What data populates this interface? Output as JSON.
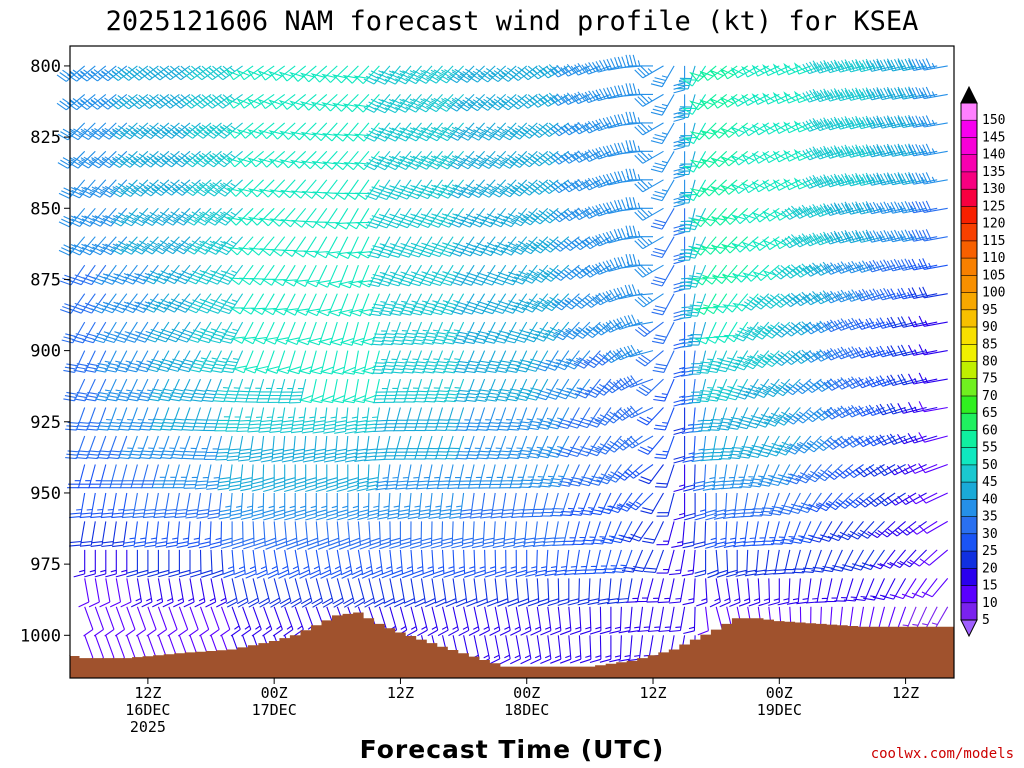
{
  "chart_data": {
    "type": "wind_barb_profile",
    "title": "2025121606 NAM forecast wind profile (kt) for KSEA",
    "xlabel": "Forecast Time (UTC)",
    "credit": "coolwx.com/models",
    "credit_color": "#cc0000",
    "y_axis": {
      "ticks": [
        800,
        825,
        850,
        875,
        900,
        925,
        950,
        975,
        1000
      ],
      "range": [
        793,
        1015
      ]
    },
    "x_axis": {
      "range_hours": [
        -1.4,
        82.6
      ],
      "ticks": [
        {
          "hour": 6,
          "label": "12Z",
          "date": "16DEC",
          "year": "2025"
        },
        {
          "hour": 18,
          "label": "00Z",
          "date": "17DEC",
          "year": ""
        },
        {
          "hour": 30,
          "label": "12Z",
          "date": "",
          "year": ""
        },
        {
          "hour": 42,
          "label": "00Z",
          "date": "18DEC",
          "year": ""
        },
        {
          "hour": 54,
          "label": "12Z",
          "date": "",
          "year": ""
        },
        {
          "hour": 66,
          "label": "00Z",
          "date": "19DEC",
          "year": ""
        },
        {
          "hour": 78,
          "label": "12Z",
          "date": "",
          "year": ""
        }
      ]
    },
    "levels_mb": [
      800,
      810,
      820,
      830,
      840,
      850,
      860,
      870,
      880,
      890,
      900,
      910,
      920,
      930,
      940,
      950,
      960,
      970,
      980,
      990,
      1000
    ],
    "time_step_hours": 1,
    "key_times": [
      0,
      10,
      18,
      26,
      30,
      42,
      50,
      54,
      57,
      60,
      66,
      74,
      82
    ],
    "wind_speed_kt": [
      [
        35,
        40,
        50,
        50,
        45,
        40,
        35,
        35,
        35,
        55,
        50,
        45,
        35
      ],
      [
        35,
        40,
        50,
        50,
        45,
        40,
        35,
        35,
        35,
        55,
        50,
        45,
        35
      ],
      [
        35,
        40,
        50,
        50,
        45,
        40,
        35,
        35,
        35,
        55,
        50,
        45,
        35
      ],
      [
        35,
        40,
        50,
        50,
        45,
        40,
        35,
        35,
        35,
        55,
        50,
        45,
        35
      ],
      [
        35,
        40,
        50,
        50,
        45,
        40,
        35,
        35,
        35,
        55,
        50,
        45,
        35
      ],
      [
        35,
        40,
        50,
        50,
        45,
        40,
        35,
        35,
        30,
        55,
        50,
        40,
        30
      ],
      [
        35,
        40,
        50,
        50,
        45,
        40,
        35,
        35,
        30,
        55,
        50,
        40,
        30
      ],
      [
        30,
        40,
        50,
        50,
        45,
        40,
        35,
        35,
        30,
        55,
        50,
        35,
        25
      ],
      [
        30,
        40,
        50,
        50,
        45,
        40,
        35,
        35,
        30,
        55,
        45,
        35,
        20
      ],
      [
        30,
        40,
        50,
        50,
        45,
        40,
        35,
        35,
        25,
        50,
        45,
        30,
        15
      ],
      [
        30,
        40,
        50,
        50,
        45,
        40,
        30,
        35,
        25,
        45,
        45,
        30,
        15
      ],
      [
        30,
        40,
        45,
        50,
        45,
        40,
        30,
        30,
        25,
        45,
        40,
        30,
        15
      ],
      [
        30,
        40,
        45,
        45,
        40,
        35,
        30,
        30,
        20,
        40,
        40,
        30,
        10
      ],
      [
        30,
        35,
        40,
        40,
        40,
        35,
        30,
        30,
        20,
        40,
        40,
        30,
        10
      ],
      [
        25,
        35,
        40,
        40,
        35,
        35,
        30,
        25,
        15,
        35,
        35,
        25,
        10
      ],
      [
        25,
        30,
        35,
        35,
        35,
        30,
        25,
        25,
        15,
        30,
        30,
        25,
        10
      ],
      [
        20,
        25,
        30,
        30,
        30,
        30,
        25,
        20,
        15,
        25,
        25,
        20,
        10
      ],
      [
        15,
        20,
        25,
        25,
        25,
        25,
        25,
        20,
        15,
        20,
        20,
        20,
        10
      ],
      [
        10,
        15,
        20,
        20,
        20,
        20,
        20,
        15,
        15,
        15,
        15,
        15,
        10
      ],
      [
        10,
        10,
        15,
        15,
        15,
        15,
        15,
        15,
        15,
        10,
        10,
        10,
        5
      ],
      [
        10,
        10,
        15,
        15,
        15,
        15,
        15,
        15,
        15,
        10,
        10,
        10,
        5
      ]
    ],
    "wind_dir_deg": [
      [
        230,
        235,
        235,
        225,
        220,
        230,
        250,
        270,
        180,
        230,
        245,
        255,
        260
      ],
      [
        230,
        235,
        235,
        225,
        220,
        230,
        250,
        270,
        180,
        230,
        245,
        255,
        260
      ],
      [
        225,
        230,
        230,
        220,
        220,
        225,
        245,
        270,
        180,
        225,
        240,
        255,
        260
      ],
      [
        225,
        230,
        230,
        220,
        220,
        225,
        245,
        270,
        180,
        225,
        240,
        255,
        260
      ],
      [
        220,
        230,
        225,
        215,
        215,
        225,
        245,
        270,
        180,
        225,
        240,
        255,
        260
      ],
      [
        220,
        225,
        225,
        210,
        215,
        220,
        245,
        270,
        180,
        220,
        235,
        255,
        260
      ],
      [
        220,
        225,
        220,
        205,
        210,
        220,
        240,
        270,
        180,
        220,
        235,
        255,
        260
      ],
      [
        215,
        220,
        215,
        200,
        210,
        215,
        240,
        270,
        180,
        215,
        230,
        250,
        260
      ],
      [
        215,
        220,
        210,
        200,
        205,
        215,
        235,
        265,
        180,
        210,
        230,
        250,
        260
      ],
      [
        210,
        215,
        205,
        195,
        200,
        210,
        230,
        260,
        180,
        205,
        225,
        250,
        260
      ],
      [
        205,
        210,
        200,
        190,
        200,
        205,
        225,
        255,
        180,
        200,
        225,
        250,
        260
      ],
      [
        205,
        205,
        195,
        190,
        195,
        205,
        220,
        250,
        180,
        200,
        220,
        245,
        260
      ],
      [
        200,
        200,
        190,
        185,
        195,
        200,
        215,
        245,
        180,
        195,
        215,
        245,
        260
      ],
      [
        200,
        200,
        185,
        185,
        195,
        200,
        215,
        240,
        180,
        190,
        210,
        240,
        255
      ],
      [
        195,
        195,
        180,
        180,
        190,
        195,
        210,
        235,
        180,
        185,
        205,
        235,
        250
      ],
      [
        190,
        190,
        180,
        180,
        185,
        190,
        205,
        225,
        180,
        180,
        200,
        230,
        245
      ],
      [
        190,
        185,
        175,
        175,
        180,
        185,
        200,
        215,
        185,
        180,
        195,
        220,
        240
      ],
      [
        180,
        180,
        170,
        170,
        175,
        180,
        195,
        205,
        190,
        175,
        190,
        210,
        230
      ],
      [
        170,
        170,
        165,
        165,
        170,
        175,
        185,
        195,
        190,
        170,
        180,
        200,
        220
      ],
      [
        160,
        160,
        160,
        160,
        165,
        170,
        180,
        190,
        190,
        165,
        175,
        190,
        210
      ],
      [
        160,
        160,
        160,
        160,
        165,
        170,
        180,
        190,
        190,
        165,
        175,
        190,
        210
      ]
    ],
    "terrain": {
      "color": "#a0522d",
      "key_hours": [
        -1.4,
        0,
        4,
        10,
        14,
        18,
        20,
        24,
        26,
        28,
        30,
        34,
        40,
        44,
        48,
        52,
        56,
        60,
        62,
        64,
        66,
        70,
        74,
        78,
        82.6
      ],
      "surface_mb": [
        1007,
        1008,
        1008,
        1006,
        1005,
        1002,
        1000,
        993,
        992,
        996,
        999,
        1004,
        1011,
        1011,
        1011,
        1009,
        1005,
        998,
        994,
        994,
        995,
        996,
        997,
        997,
        997
      ]
    },
    "colorbar": {
      "labels": [
        5,
        10,
        15,
        20,
        25,
        30,
        35,
        40,
        45,
        50,
        55,
        60,
        65,
        70,
        75,
        80,
        85,
        90,
        95,
        100,
        105,
        110,
        115,
        120,
        125,
        130,
        135,
        140,
        145,
        150
      ],
      "colors": [
        "#7a22ee",
        "#5a00ff",
        "#2a00ee",
        "#1030e0",
        "#1a54f5",
        "#2a70f0",
        "#2590e8",
        "#1aaad8",
        "#1ac8d0",
        "#10e8c0",
        "#10f0a0",
        "#20f060",
        "#30f020",
        "#70f020",
        "#c0f000",
        "#f0f000",
        "#f8e000",
        "#f8c000",
        "#f8a800",
        "#f89000",
        "#f88000",
        "#f86000",
        "#f84000",
        "#f82000",
        "#f80040",
        "#f80080",
        "#f800b0",
        "#f800d8",
        "#f800f0",
        "#ff80ff"
      ],
      "under_color": "#a060ff",
      "over_color": "#000000"
    }
  }
}
